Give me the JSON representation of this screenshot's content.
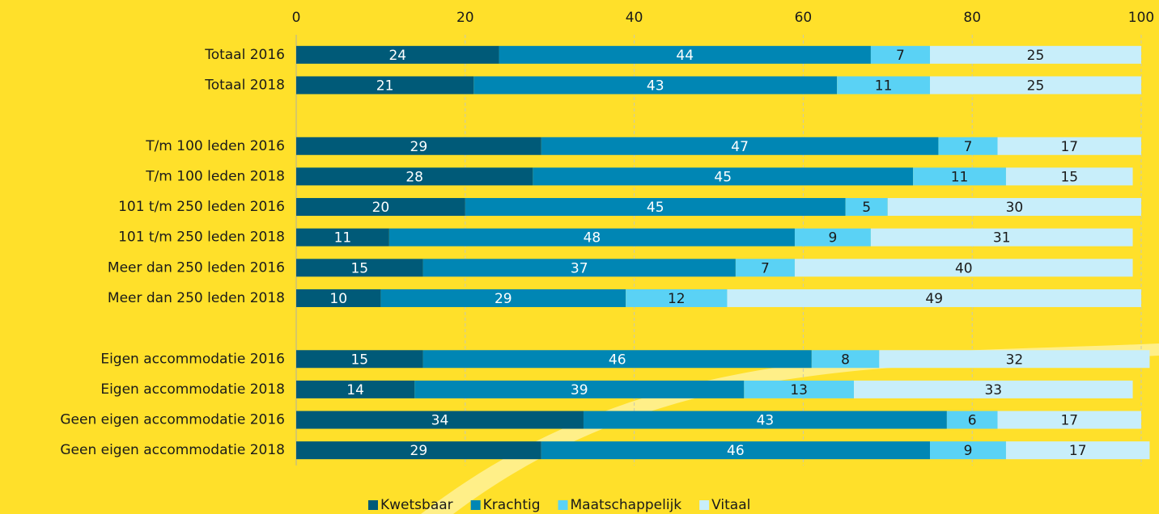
{
  "chart_data": {
    "type": "stacked-bar-horizontal",
    "categories": [
      "Totaal 2016",
      "Totaal 2018",
      null,
      "T/m 100 leden 2016",
      "T/m 100 leden 2018",
      "101 t/m 250 leden 2016",
      "101 t/m 250 leden 2018",
      "Meer dan 250 leden 2016",
      "Meer dan 250 leden 2018",
      null,
      "Eigen accommodatie 2016",
      "Eigen accommodatie 2018",
      "Geen eigen accommodatie 2016",
      "Geen eigen accommodatie 2018"
    ],
    "series": [
      {
        "name": "Kwetsbaar",
        "color": "#005a78",
        "values": [
          24,
          21,
          null,
          29,
          28,
          20,
          11,
          15,
          10,
          null,
          15,
          14,
          34,
          29
        ]
      },
      {
        "name": "Krachtig",
        "color": "#0086b4",
        "values": [
          44,
          43,
          null,
          47,
          45,
          45,
          48,
          37,
          29,
          null,
          46,
          39,
          43,
          46
        ]
      },
      {
        "name": "Maatschappelijk",
        "color": "#5ad2f5",
        "values": [
          7,
          11,
          null,
          7,
          11,
          5,
          9,
          7,
          12,
          null,
          8,
          13,
          6,
          9
        ]
      },
      {
        "name": "Vitaal",
        "color": "#c8eefa",
        "values": [
          25,
          25,
          null,
          17,
          15,
          30,
          31,
          40,
          49,
          null,
          32,
          33,
          17,
          17
        ]
      }
    ],
    "xlim": [
      0,
      100
    ],
    "xticks": [
      0,
      20,
      40,
      60,
      80,
      100
    ],
    "grid": true,
    "legend": "bottom"
  }
}
